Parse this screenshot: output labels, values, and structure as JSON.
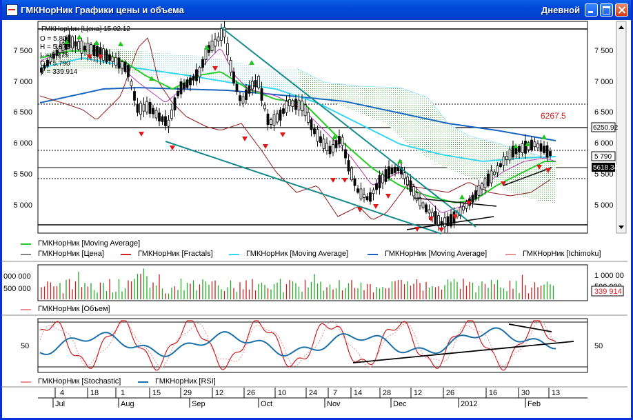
{
  "window": {
    "title": "ГМКНорНик Графики цены и объема",
    "interval": "Дневной"
  },
  "colors": {
    "titlebar": "#0247d8",
    "up_arrow": "#22c422",
    "down_arrow": "#e01818",
    "ma_fast": "#22cc22",
    "ma_mid": "#33d6ee",
    "ma_slow": "#1565c0",
    "trend": "#138a8a",
    "ichimoku_cloud": "#4cbf4c",
    "volume": "#22a822",
    "stochastic": "#c81e1e",
    "rsi": "#1a6fa8"
  },
  "price_panel": {
    "ohlc": {
      "header": "ГМКНорНик [Цена] 15.02.12",
      "o": "O = 5.801",
      "h": "H = 5.875",
      "l": "L = 5.775",
      "c": "C = 5.790",
      "v": "V = 339.914"
    },
    "y_ticks_left": [
      "7 500",
      "7 000",
      "6 500",
      "6 000",
      "5 500",
      "5 000"
    ],
    "y_ticks_right": [
      "7 500",
      "7 000",
      "6 500",
      "6 000",
      "5 500",
      "5 000"
    ],
    "levels": {
      "top": "6267.5",
      "resistance": "6250.92",
      "last": "5 790",
      "support": "5618.34"
    }
  },
  "legend": {
    "ma1": "ГМКНорНик [Moving Average]",
    "price": "ГМКНорНик [Цена]",
    "fractals": "ГМКНорНик [Fractals]",
    "ma2": "ГМКНорНик [Moving Average]",
    "ma3": "ГМКНорНик [Moving Average]",
    "ichimoku": "ГМКНорНик [Ichimoku]",
    "volume": "ГМКНорНик [Объем]",
    "stochastic": "ГМКНорНик [Stochastic]",
    "rsi": "ГМКНорНик [RSI]"
  },
  "volume_panel": {
    "y_ticks": [
      "000 000",
      "500 000"
    ],
    "y_ticks_right": [
      "1 000 00",
      "500 000"
    ],
    "last": "339 914"
  },
  "oscillator_panel": {
    "y_tick_left": "50",
    "y_tick_right": "50"
  },
  "x_axis": {
    "days": [
      "4",
      "18",
      "1",
      "15",
      "29",
      "12",
      "26",
      "10",
      "24",
      "7",
      "14",
      "28",
      "12",
      "26",
      "16",
      "30",
      "13"
    ],
    "months": [
      "Jul",
      "Aug",
      "Sep",
      "Oct",
      "Nov",
      "Dec",
      "2012",
      "Feb"
    ]
  }
}
